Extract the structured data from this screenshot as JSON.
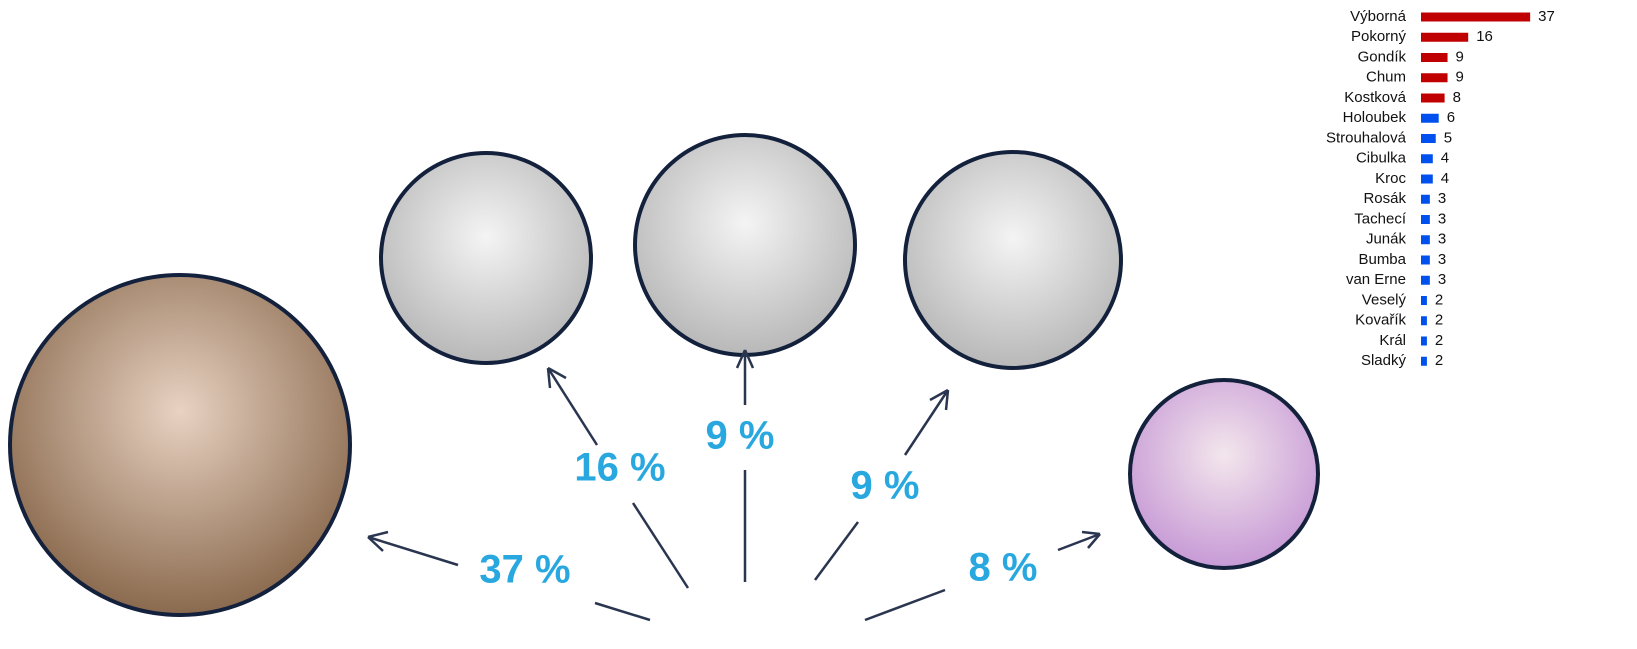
{
  "chart_data": {
    "type": "barh",
    "categories": [
      "Výborná",
      "Pokorný",
      "Gondík",
      "Chum",
      "Kostková",
      "Holoubek",
      "Strouhalová",
      "Cibulka",
      "Kroc",
      "Rosák",
      "Tachecí",
      "Junák",
      "Bumba",
      "van Erne",
      "Veselý",
      "Kovařík",
      "Král",
      "Sladký"
    ],
    "values": [
      37,
      16,
      9,
      9,
      8,
      6,
      5,
      4,
      4,
      3,
      3,
      3,
      3,
      3,
      2,
      2,
      2,
      2
    ],
    "colors": [
      "#c00000",
      "#c00000",
      "#c00000",
      "#c00000",
      "#c00000",
      "#0050f0",
      "#0050f0",
      "#0050f0",
      "#0050f0",
      "#0050f0",
      "#0050f0",
      "#0050f0",
      "#0050f0",
      "#0050f0",
      "#0050f0",
      "#0050f0",
      "#0050f0",
      "#0050f0"
    ],
    "xlim": [
      0,
      40
    ]
  },
  "callouts": [
    "37 %",
    "16 %",
    "9 %",
    "9 %",
    "8 %"
  ]
}
